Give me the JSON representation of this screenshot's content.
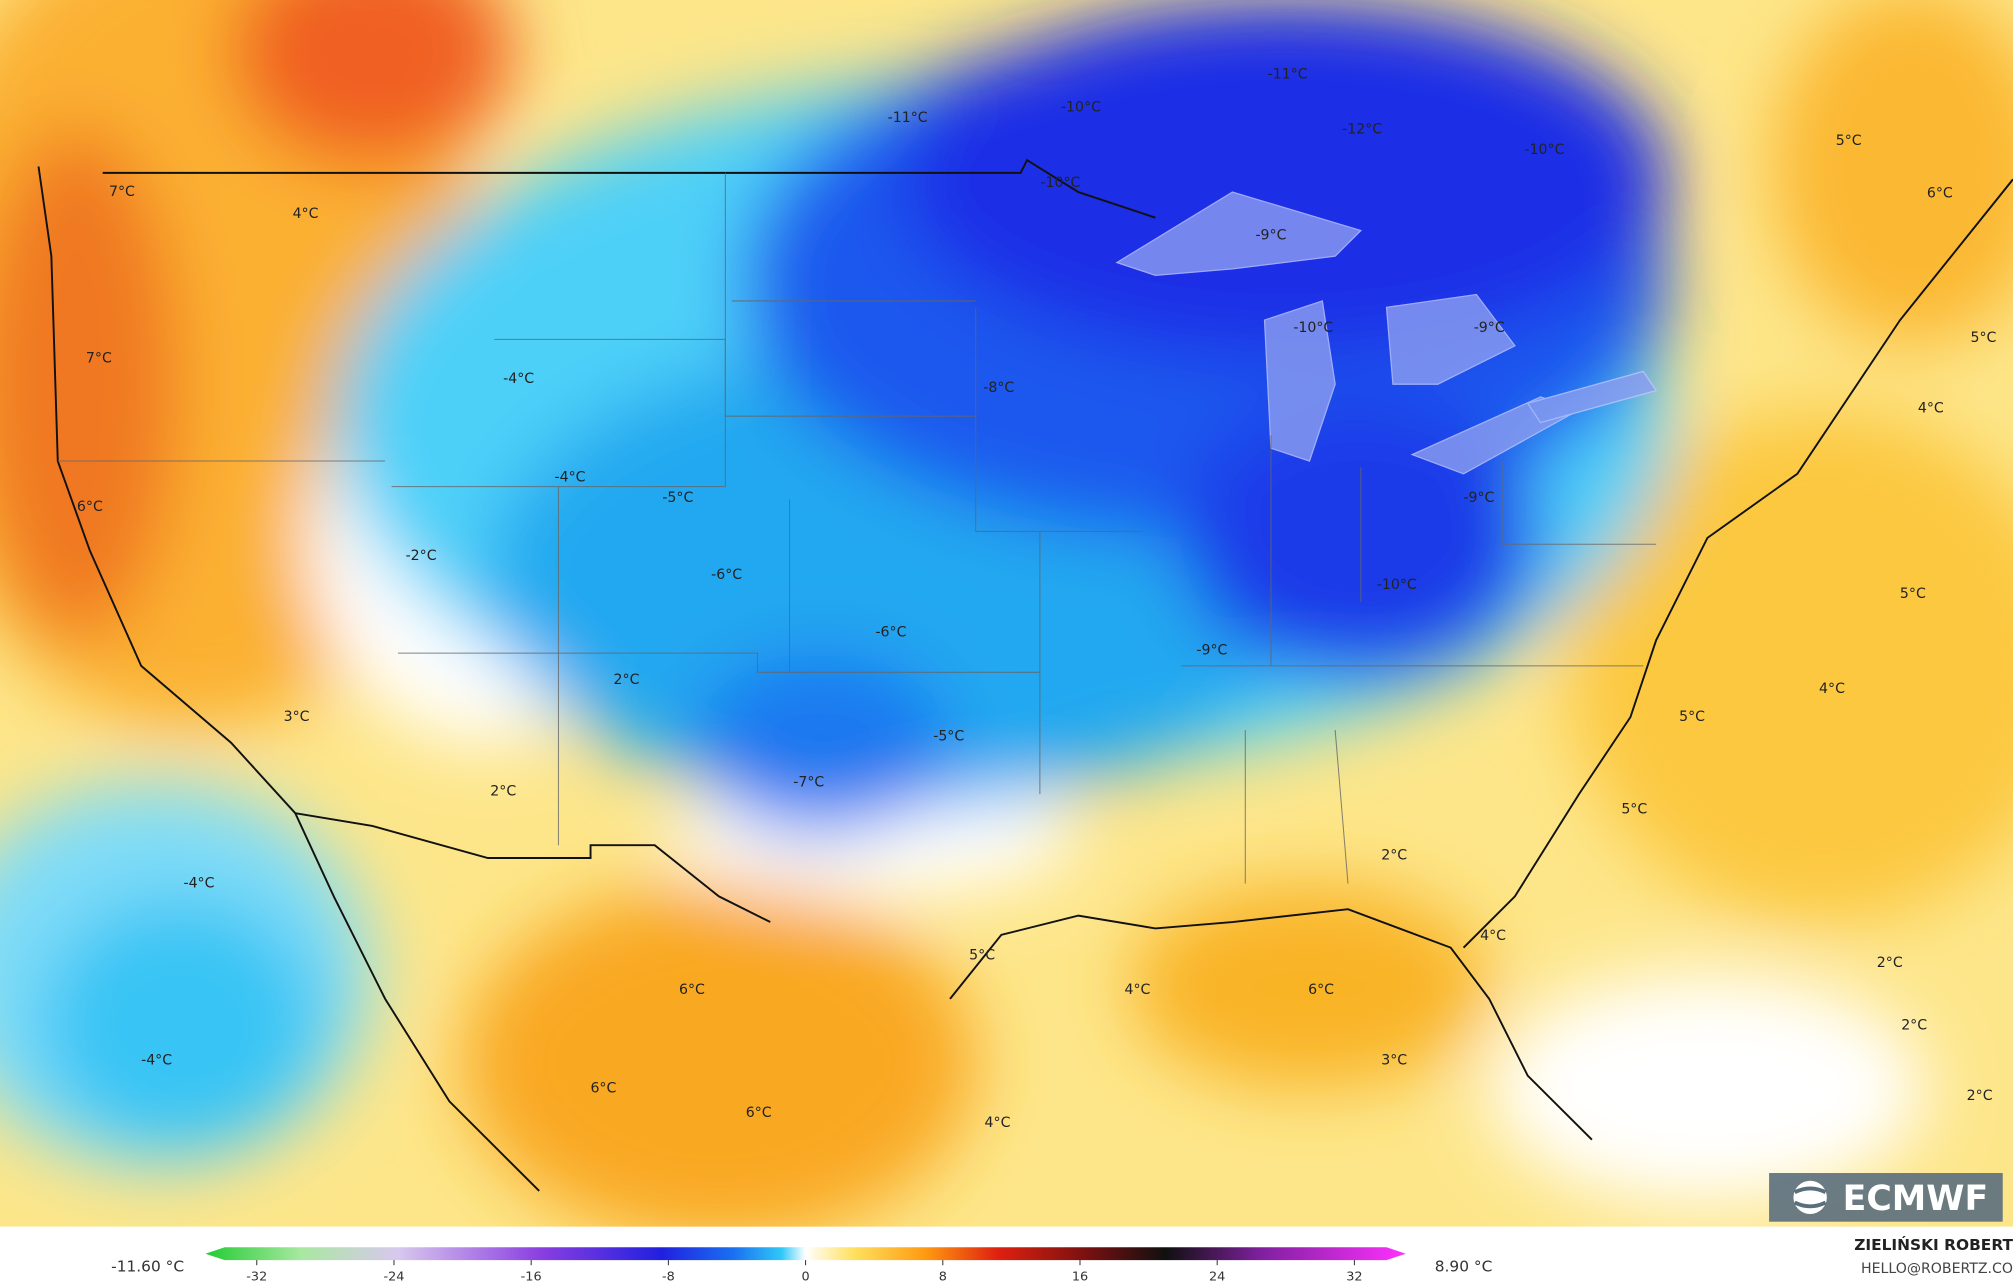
{
  "map": {
    "labels": [
      "-11°C",
      "-10°C",
      "-11°C",
      "-12°C",
      "-10°C",
      "-10°C",
      "-9°C",
      "-10°C",
      "-9°C",
      "-8°C",
      "7°C",
      "4°C",
      "7°C",
      "-4°C",
      "6°C",
      "-4°C",
      "-5°C",
      "-2°C",
      "-6°C",
      "-6°C",
      "-9°C",
      "-9°C",
      "-10°C",
      "2°C",
      "3°C",
      "-5°C",
      "-7°C",
      "2°C",
      "5°C",
      "4°C",
      "5°C",
      "2°C",
      "-4°C",
      "5°C",
      "4°C",
      "6°C",
      "4°C",
      "6°C",
      "2°C",
      "2°C",
      "-4°C",
      "3°C",
      "2°C",
      "6°C",
      "6°C",
      "4°C",
      "5°C",
      "6°C",
      "5°C",
      "4°C",
      "5°C"
    ]
  },
  "colorbar": {
    "ticks": [
      -32,
      -24,
      -16,
      -8,
      0,
      8,
      16,
      24,
      32
    ],
    "min_label": "-11.60 °C",
    "max_label": "8.90 °C"
  },
  "credits": {
    "author": "ZIELIŃSKI ROBERT",
    "contact": "HELLO@ROBERTZ.CO",
    "logo": "ECMWF"
  }
}
